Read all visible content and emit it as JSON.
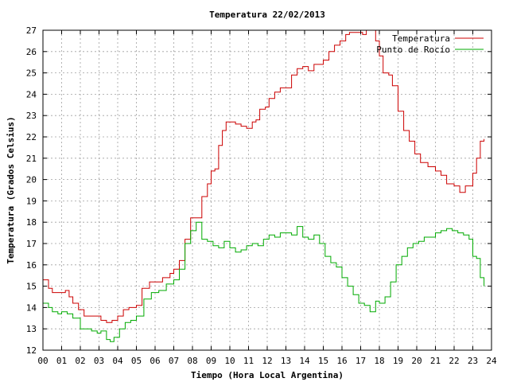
{
  "chart_data": {
    "type": "line",
    "title": "Temperatura 22/02/2013",
    "xlabel": "Tiempo (Hora Local Argentina)",
    "ylabel": "Temperatura (Grados Celsius)",
    "xlim": [
      0,
      24
    ],
    "ylim": [
      12,
      27
    ],
    "grid": true,
    "legend_position": "top-right",
    "x_ticks": [
      "00",
      "01",
      "02",
      "03",
      "04",
      "05",
      "06",
      "07",
      "08",
      "09",
      "10",
      "11",
      "12",
      "13",
      "14",
      "15",
      "16",
      "17",
      "18",
      "19",
      "20",
      "21",
      "22",
      "23",
      "24"
    ],
    "y_ticks": [
      12,
      13,
      14,
      15,
      16,
      17,
      18,
      19,
      20,
      21,
      22,
      23,
      24,
      25,
      26,
      27
    ],
    "series": [
      {
        "name": "Temperatura",
        "color": "#cc0000",
        "x": [
          0,
          0.3,
          0.5,
          0.8,
          1.0,
          1.2,
          1.4,
          1.6,
          1.9,
          2.2,
          2.5,
          2.8,
          3.1,
          3.4,
          3.7,
          4.0,
          4.3,
          4.6,
          5.0,
          5.3,
          5.7,
          6.0,
          6.4,
          6.8,
          7.0,
          7.3,
          7.6,
          7.9,
          8.2,
          8.5,
          8.8,
          9.0,
          9.2,
          9.4,
          9.6,
          9.8,
          10.0,
          10.3,
          10.6,
          10.9,
          11.2,
          11.4,
          11.6,
          11.9,
          12.1,
          12.4,
          12.7,
          13.0,
          13.3,
          13.6,
          13.9,
          14.2,
          14.5,
          14.8,
          15.0,
          15.3,
          15.6,
          15.9,
          16.2,
          16.4,
          16.6,
          16.9,
          17.1,
          17.3,
          17.5,
          17.8,
          18.0,
          18.2,
          18.5,
          18.7,
          19.0,
          19.3,
          19.6,
          19.9,
          20.2,
          20.6,
          21.0,
          21.3,
          21.6,
          22.0,
          22.3,
          22.6,
          23.0,
          23.2,
          23.4,
          23.6
        ],
        "values": [
          15.3,
          14.9,
          14.7,
          14.7,
          14.7,
          14.8,
          14.5,
          14.2,
          13.9,
          13.6,
          13.6,
          13.6,
          13.4,
          13.3,
          13.4,
          13.6,
          13.9,
          14.0,
          14.1,
          14.9,
          15.2,
          15.2,
          15.4,
          15.6,
          15.8,
          16.2,
          17.2,
          18.2,
          18.2,
          19.2,
          19.8,
          20.4,
          20.5,
          21.6,
          22.3,
          22.7,
          22.7,
          22.6,
          22.5,
          22.4,
          22.7,
          22.8,
          23.3,
          23.4,
          23.8,
          24.1,
          24.3,
          24.3,
          24.9,
          25.2,
          25.3,
          25.1,
          25.4,
          25.4,
          25.6,
          26.0,
          26.3,
          26.5,
          26.8,
          26.9,
          26.9,
          26.9,
          26.8,
          27.0,
          27.0,
          26.5,
          25.8,
          25.0,
          24.9,
          24.4,
          23.2,
          22.3,
          21.8,
          21.2,
          20.8,
          20.6,
          20.4,
          20.2,
          19.8,
          19.7,
          19.4,
          19.7,
          20.3,
          21.0,
          21.8,
          21.9
        ]
      },
      {
        "name": "Punto de Rocío",
        "color": "#00aa00",
        "x": [
          0,
          0.3,
          0.5,
          0.8,
          1.0,
          1.3,
          1.6,
          2.0,
          2.3,
          2.6,
          2.9,
          3.1,
          3.4,
          3.6,
          3.8,
          4.1,
          4.4,
          4.7,
          5.0,
          5.4,
          5.8,
          6.2,
          6.6,
          7.0,
          7.3,
          7.6,
          7.9,
          8.2,
          8.5,
          8.8,
          9.1,
          9.4,
          9.7,
          10.0,
          10.3,
          10.6,
          10.9,
          11.2,
          11.5,
          11.8,
          12.1,
          12.4,
          12.7,
          13.0,
          13.3,
          13.6,
          13.9,
          14.2,
          14.5,
          14.8,
          15.1,
          15.4,
          15.7,
          16.0,
          16.3,
          16.6,
          16.9,
          17.2,
          17.5,
          17.8,
          18.0,
          18.3,
          18.6,
          18.9,
          19.2,
          19.5,
          19.8,
          20.1,
          20.4,
          20.7,
          21.0,
          21.3,
          21.6,
          21.9,
          22.2,
          22.5,
          22.8,
          23.0,
          23.2,
          23.4,
          23.6
        ],
        "values": [
          14.2,
          14.0,
          13.8,
          13.7,
          13.8,
          13.7,
          13.5,
          13.0,
          13.0,
          12.9,
          12.8,
          12.9,
          12.5,
          12.4,
          12.6,
          13.0,
          13.3,
          13.4,
          13.6,
          14.4,
          14.7,
          14.8,
          15.1,
          15.3,
          15.8,
          17.0,
          17.6,
          18.0,
          17.2,
          17.1,
          16.9,
          16.8,
          17.1,
          16.8,
          16.6,
          16.7,
          16.9,
          17.0,
          16.9,
          17.2,
          17.4,
          17.3,
          17.5,
          17.5,
          17.4,
          17.8,
          17.3,
          17.2,
          17.4,
          17.0,
          16.4,
          16.1,
          15.9,
          15.4,
          15.0,
          14.6,
          14.2,
          14.1,
          13.8,
          14.3,
          14.2,
          14.5,
          15.2,
          16.0,
          16.4,
          16.8,
          17.0,
          17.1,
          17.3,
          17.3,
          17.5,
          17.6,
          17.7,
          17.6,
          17.5,
          17.4,
          17.2,
          16.4,
          16.3,
          15.4,
          15.0
        ]
      }
    ]
  }
}
